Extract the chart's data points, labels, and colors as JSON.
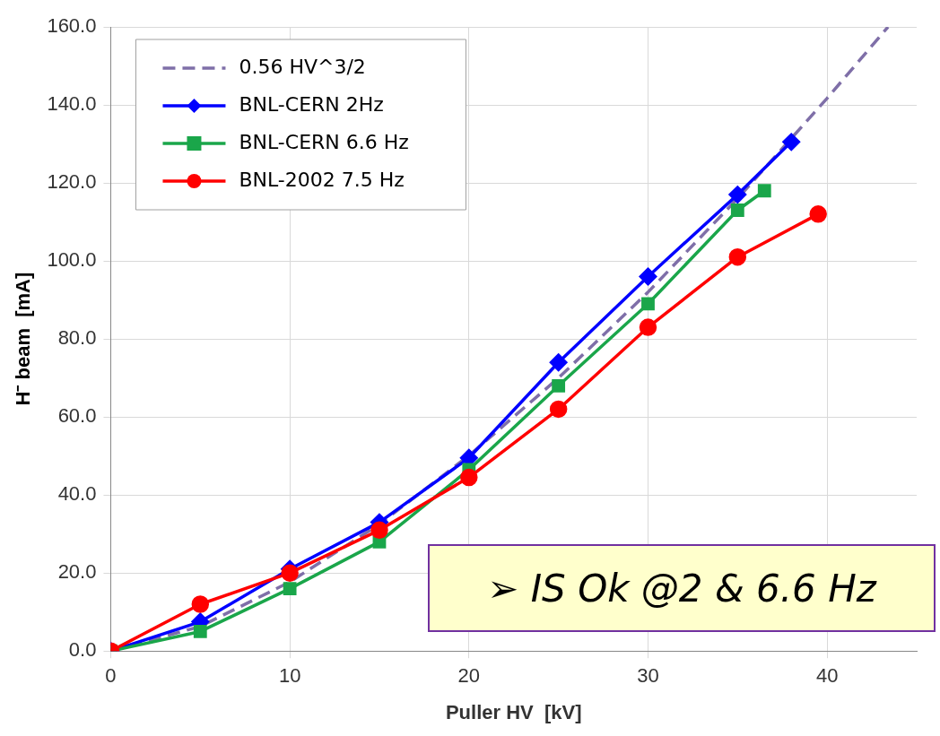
{
  "chart_data": {
    "type": "line",
    "xlabel": "Puller HV  [kV]",
    "ylabel": "H⁻ beam  [mA]",
    "annotations": [
      "➢ IS Ok @2 & 6.6 Hz"
    ],
    "xlim": [
      0,
      45
    ],
    "xticks": [
      0,
      10,
      20,
      30,
      40
    ],
    "ylim": [
      0,
      160
    ],
    "yticks": [
      {
        "value": 0,
        "label": "0.0"
      },
      {
        "value": 20,
        "label": "20.0"
      },
      {
        "value": 40,
        "label": "40.0"
      },
      {
        "value": 60,
        "label": "60.0"
      },
      {
        "value": 80,
        "label": "80.0"
      },
      {
        "value": 100,
        "label": "100.0"
      },
      {
        "value": 120,
        "label": "120.0"
      },
      {
        "value": 140,
        "label": "140.0"
      },
      {
        "value": 160,
        "label": "160.0"
      }
    ],
    "grid": true,
    "legend": "top left",
    "series": [
      {
        "name": "0.56 HV^3/2",
        "color": "#7f6fa8",
        "marker": "none",
        "line_style": "dashed",
        "x": [
          0,
          5,
          10,
          15,
          20,
          25,
          30,
          35,
          40,
          43.4
        ],
        "values": [
          0,
          6.3,
          17.7,
          32.5,
          50.1,
          70,
          92,
          116,
          141.7,
          160
        ]
      },
      {
        "name": "BNL-CERN 2Hz",
        "color": "#0000ff",
        "marker": "diamond",
        "line_style": "solid",
        "x": [
          0,
          5,
          10,
          15,
          20,
          25,
          30,
          35,
          38
        ],
        "values": [
          0,
          7.5,
          21,
          33,
          49.5,
          74,
          96,
          117,
          130.5
        ]
      },
      {
        "name": "BNL-CERN 6.6 Hz",
        "color": "#1aa64a",
        "marker": "square",
        "line_style": "solid",
        "x": [
          0,
          5,
          10,
          15,
          20,
          25,
          30,
          35,
          36.5
        ],
        "values": [
          0,
          5,
          16,
          28,
          46.5,
          68,
          89,
          113,
          118
        ]
      },
      {
        "name": "BNL-2002 7.5 Hz",
        "color": "#ff0000",
        "marker": "circle",
        "line_style": "solid",
        "x": [
          0,
          5,
          10,
          15,
          20,
          25,
          30,
          35,
          39.5
        ],
        "values": [
          0,
          12,
          20,
          31,
          44.5,
          62,
          83,
          101,
          112
        ]
      }
    ]
  }
}
